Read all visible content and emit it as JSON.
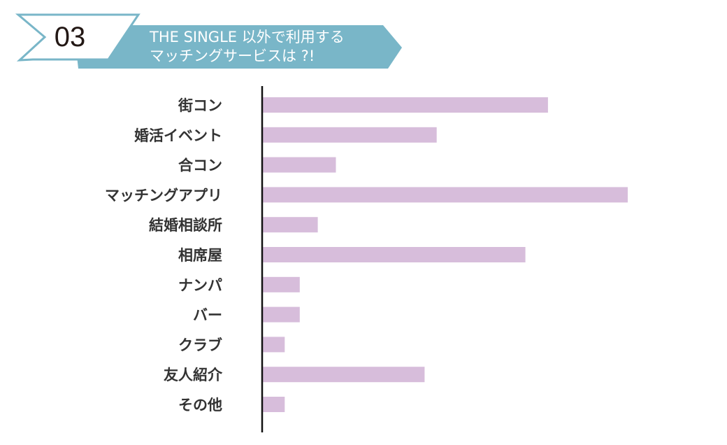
{
  "banner": {
    "number": "03",
    "title_line1": "THE SINGLE 以外で利用する",
    "title_line2": "マッチングサービスは ?!",
    "colors": {
      "ribbon_fill": "#79b6c8",
      "tag_fill": "#ffffff",
      "tag_stroke": "#79b6c8"
    }
  },
  "chart_data": {
    "type": "bar",
    "orientation": "horizontal",
    "title": "",
    "xlabel": "",
    "ylabel": "",
    "categories": [
      "街コン",
      "婚活イベント",
      "合コン",
      "マッチングアプリ",
      "結婚相談所",
      "相席屋",
      "ナンパ",
      "バー",
      "クラブ",
      "友人紹介",
      "その他"
    ],
    "values": [
      19,
      11.6,
      4.9,
      24.3,
      3.7,
      17.5,
      2.5,
      2.5,
      1.5,
      10.8,
      1.5
    ],
    "xlim": [
      0,
      24.3
    ],
    "grid": false,
    "legend": "none",
    "bar_color": "#d7bddb",
    "axis_color": "#111111"
  }
}
